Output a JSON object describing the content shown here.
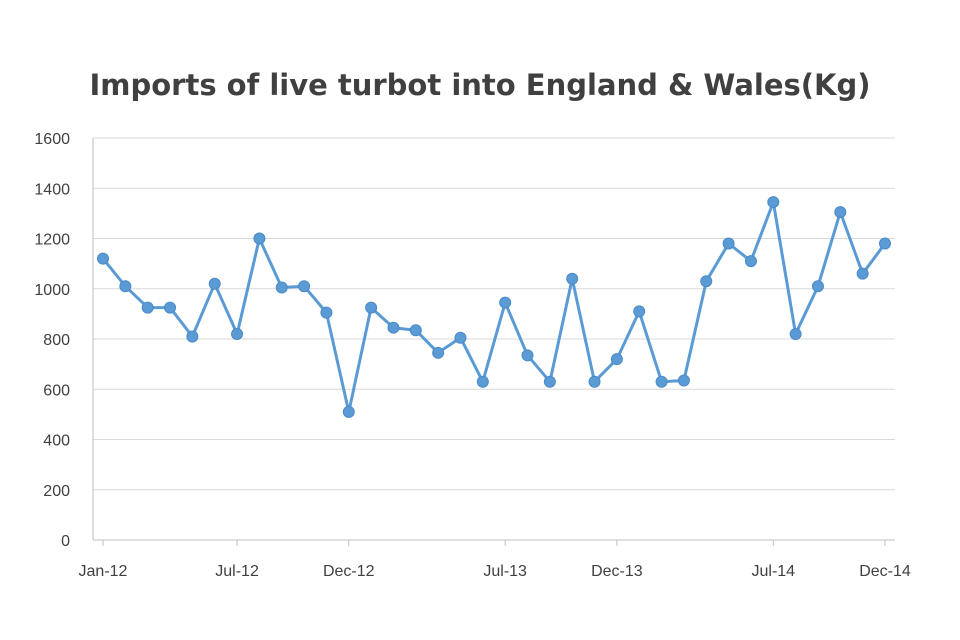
{
  "chart_data": {
    "type": "line",
    "title": "Imports of live turbot into England & Wales(Kg)",
    "xlabel": "",
    "ylabel": "",
    "ylim": [
      0,
      1600
    ],
    "yticks": [
      0,
      200,
      400,
      600,
      800,
      1000,
      1200,
      1400,
      1600
    ],
    "grid": true,
    "legend": "none",
    "line_color": "#5b9bd5",
    "x_tick_labels": [
      {
        "index": 0,
        "label": "Jan-12"
      },
      {
        "index": 6,
        "label": "Jul-12"
      },
      {
        "index": 11,
        "label": "Dec-12"
      },
      {
        "index": 18,
        "label": "Jul-13"
      },
      {
        "index": 23,
        "label": "Dec-13"
      },
      {
        "index": 30,
        "label": "Jul-14"
      },
      {
        "index": 35,
        "label": "Dec-14"
      }
    ],
    "series": [
      {
        "x": [
          "Jan-12",
          "Feb-12",
          "Mar-12",
          "Apr-12",
          "May-12",
          "Jun-12",
          "Jul-12",
          "Aug-12",
          "Sep-12",
          "Oct-12",
          "Nov-12",
          "Dec-12",
          "Jan-13",
          "Feb-13",
          "Mar-13",
          "Apr-13",
          "May-13",
          "Jun-13",
          "Jul-13",
          "Aug-13",
          "Sep-13",
          "Oct-13",
          "Nov-13",
          "Dec-13",
          "Jan-14",
          "Feb-14",
          "Mar-14",
          "Apr-14",
          "May-14",
          "Jun-14",
          "Jul-14",
          "Aug-14",
          "Sep-14",
          "Oct-14",
          "Nov-14",
          "Dec-14"
        ],
        "values": [
          1120,
          1010,
          925,
          925,
          810,
          1020,
          820,
          1200,
          1005,
          1010,
          905,
          510,
          925,
          845,
          835,
          745,
          805,
          630,
          945,
          735,
          630,
          1040,
          630,
          720,
          910,
          630,
          635,
          1030,
          1180,
          1110,
          1345,
          820,
          1010,
          1305,
          1060,
          1180
        ]
      }
    ]
  }
}
